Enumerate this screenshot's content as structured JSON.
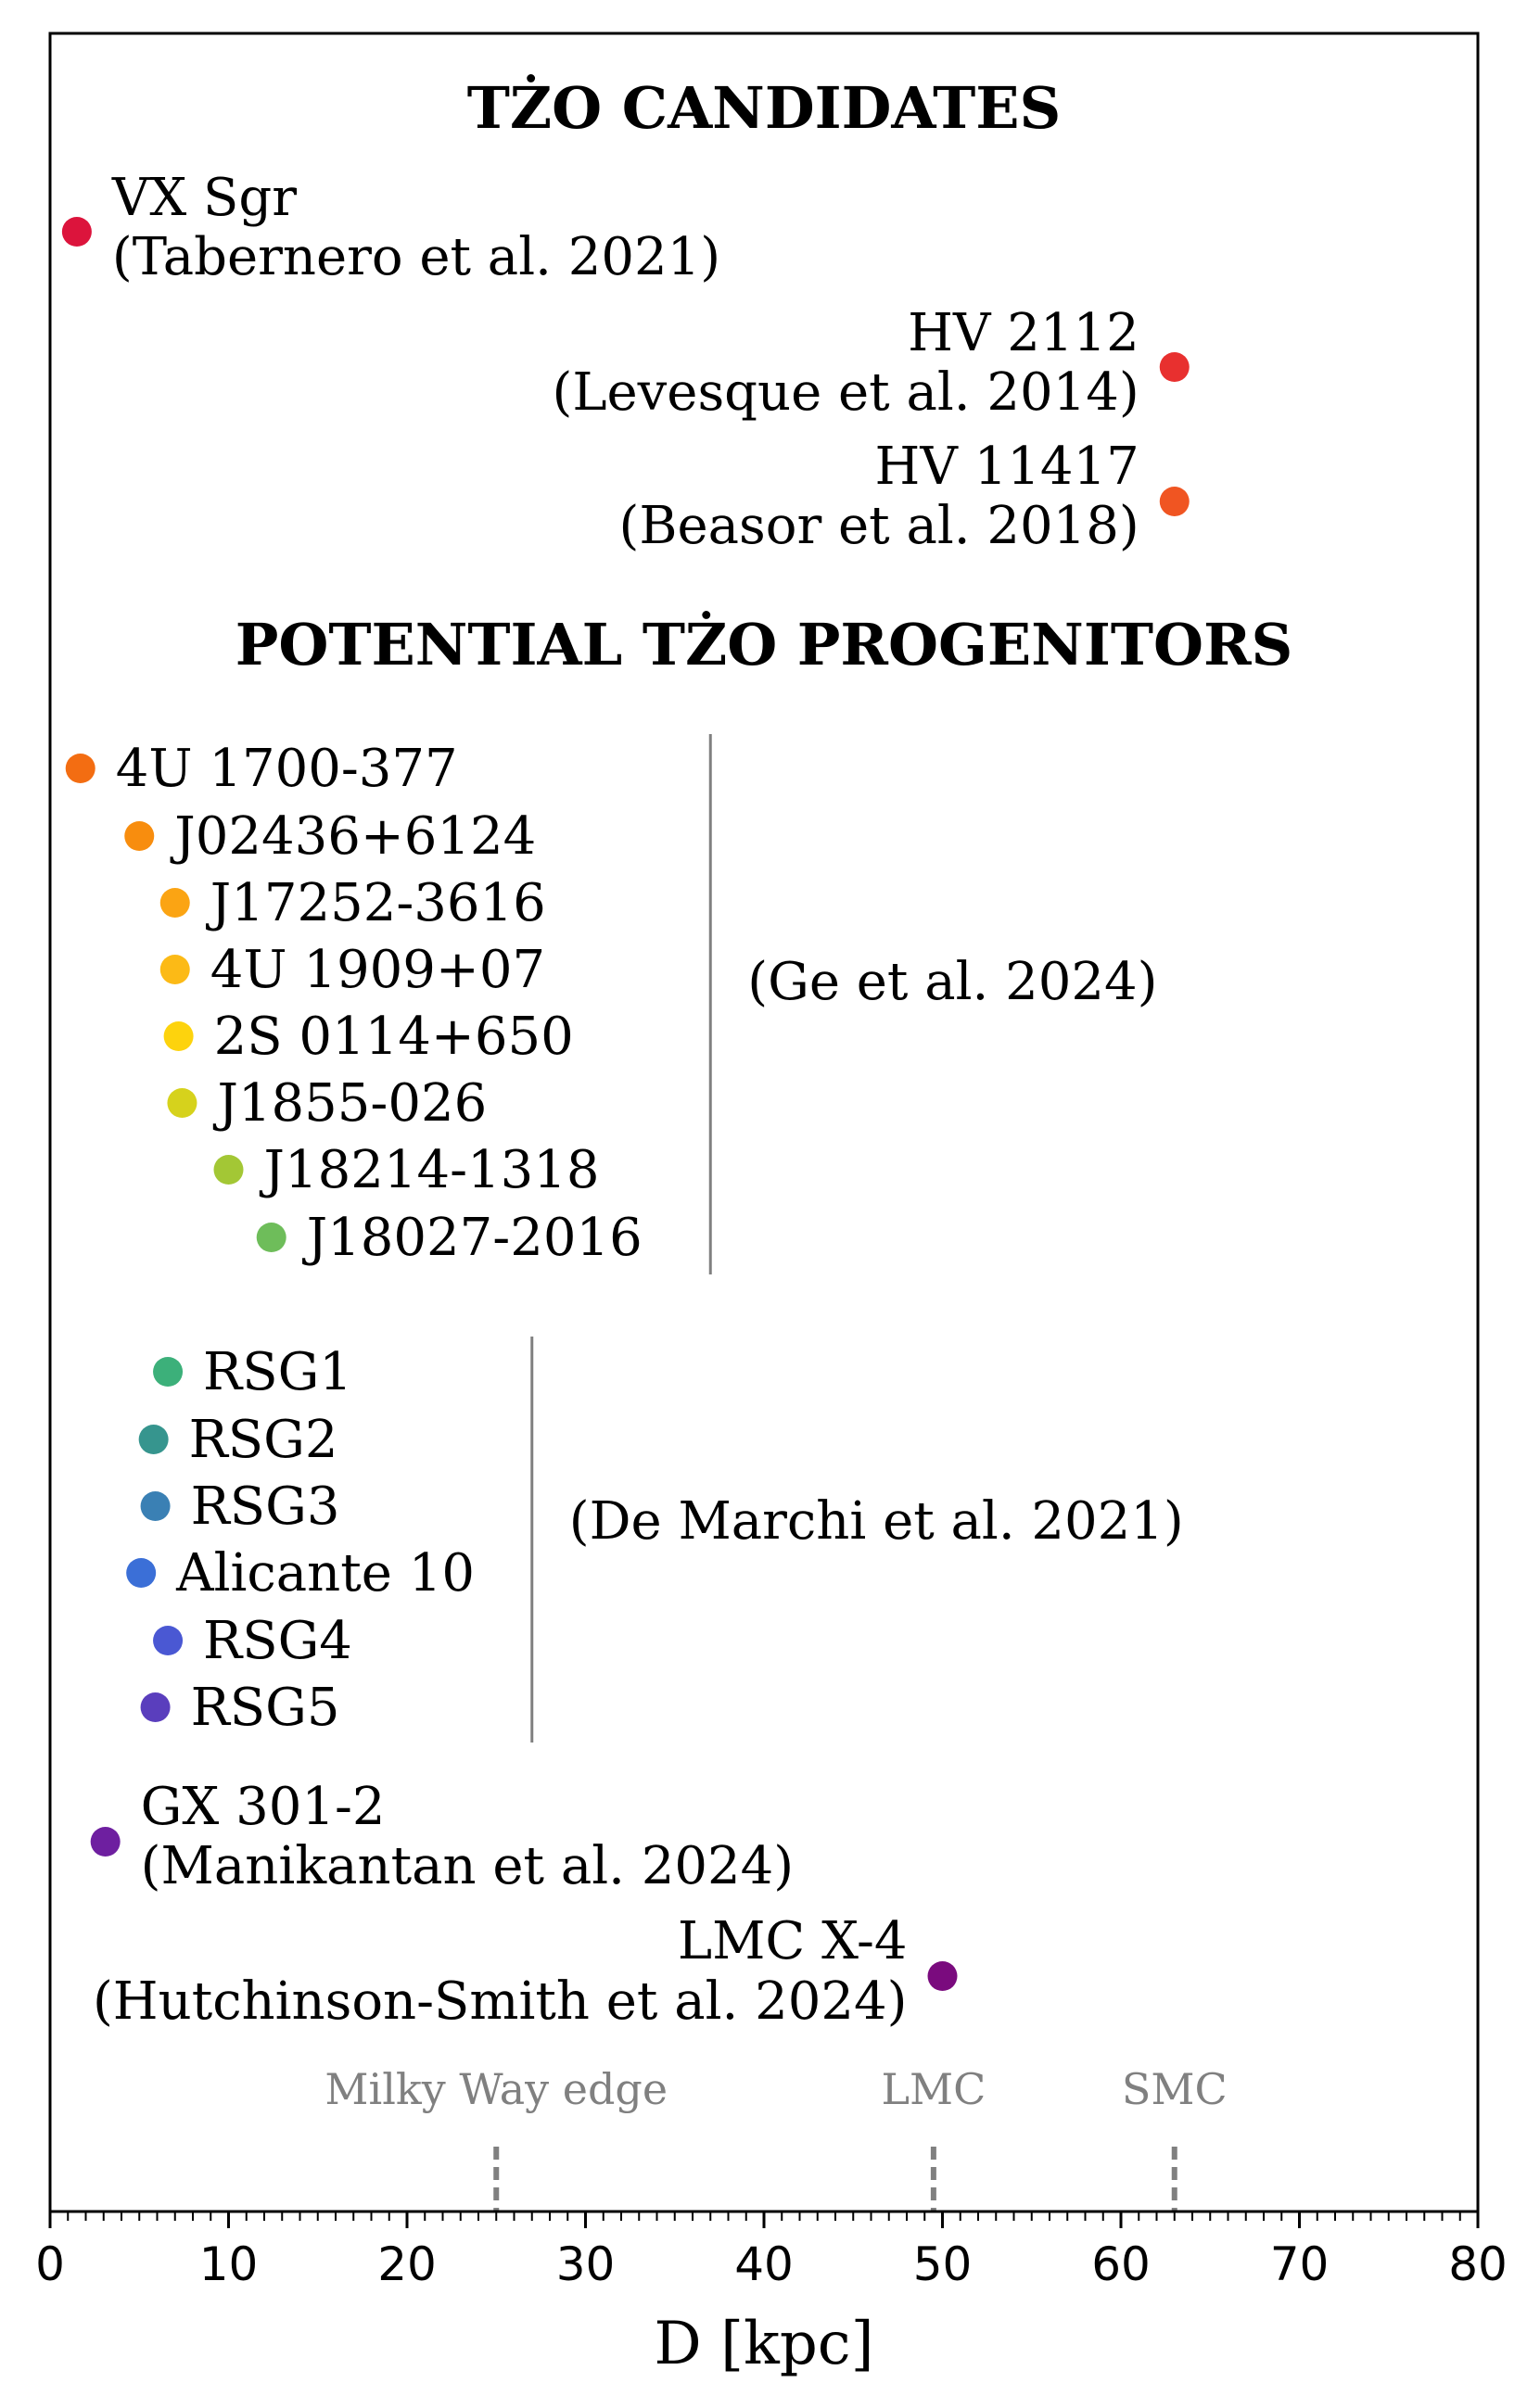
{
  "chart_data": {
    "type": "scatter",
    "xlabel": "D [kpc]",
    "xlim": [
      0,
      80
    ],
    "xticks": [
      0,
      10,
      20,
      30,
      40,
      50,
      60,
      70,
      80
    ],
    "grid": false,
    "sections": [
      {
        "title": "TŻO CANDIDATES"
      },
      {
        "title": "POTENTIAL TŻO PROGENITORS"
      }
    ],
    "points": [
      {
        "name": "VX Sgr",
        "ref": "(Tabernero et al. 2021)",
        "x": 1.5,
        "color": "#dc143c"
      },
      {
        "name": "HV 2112",
        "ref": "(Levesque et al. 2014)",
        "x": 63,
        "color": "#e8302f"
      },
      {
        "name": "HV 11417",
        "ref": "(Beasor et al. 2018)",
        "x": 63,
        "color": "#f05522"
      },
      {
        "name": "4U 1700-377",
        "ref": "",
        "x": 1.7,
        "color": "#f36d12"
      },
      {
        "name": "J02436+6124",
        "ref": "",
        "x": 5.0,
        "color": "#f88d0e"
      },
      {
        "name": "J17252-3616",
        "ref": "",
        "x": 7.0,
        "color": "#fba413"
      },
      {
        "name": "4U 1909+07",
        "ref": "",
        "x": 7.0,
        "color": "#fcba16"
      },
      {
        "name": "2S 0114+650",
        "ref": "",
        "x": 7.2,
        "color": "#fdd30d"
      },
      {
        "name": "J1855-026",
        "ref": "",
        "x": 7.4,
        "color": "#d6d21c"
      },
      {
        "name": "J18214-1318",
        "ref": "",
        "x": 10.0,
        "color": "#a3c735"
      },
      {
        "name": "J18027-2016",
        "ref": "",
        "x": 12.4,
        "color": "#6ebd5a"
      },
      {
        "name": "RSG1",
        "ref": "",
        "x": 6.6,
        "color": "#3cb07a"
      },
      {
        "name": "RSG2",
        "ref": "",
        "x": 5.8,
        "color": "#36958e"
      },
      {
        "name": "RSG3",
        "ref": "",
        "x": 5.9,
        "color": "#3a80b4"
      },
      {
        "name": "Alicante 10",
        "ref": "",
        "x": 5.1,
        "color": "#3b6fd7"
      },
      {
        "name": "RSG4",
        "ref": "",
        "x": 6.6,
        "color": "#4a58d3"
      },
      {
        "name": "RSG5",
        "ref": "",
        "x": 5.9,
        "color": "#5a3ebd"
      },
      {
        "name": "GX 301-2",
        "ref": "(Manikantan et al. 2024)",
        "x": 3.1,
        "color": "#6e1fa0"
      },
      {
        "name": "LMC X-4",
        "ref": "(Hutchinson-Smith et al. 2024)",
        "x": 50.0,
        "color": "#7a0b7e"
      }
    ],
    "group_refs": [
      {
        "label": "(Ge et al. 2024)",
        "line_x": 37
      },
      {
        "label": "(De Marchi et al. 2021)",
        "line_x": 27
      }
    ],
    "markers": [
      {
        "label": "Milky Way edge",
        "x": 25
      },
      {
        "label": "LMC",
        "x": 49.5
      },
      {
        "label": "SMC",
        "x": 63
      }
    ]
  }
}
